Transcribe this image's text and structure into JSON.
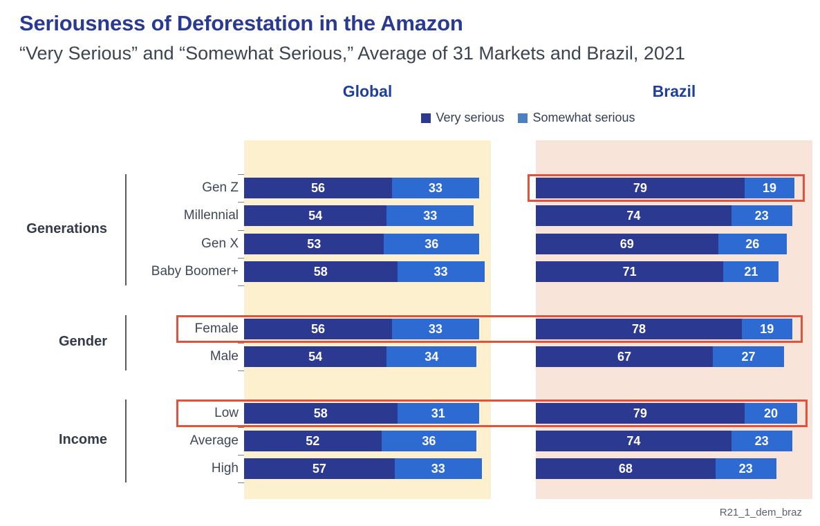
{
  "title": "Seriousness of Deforestation in the Amazon",
  "subtitle": "“Very Serious” and “Somewhat Serious,” Average of 31 Markets and Brazil, 2021",
  "panel_headers": {
    "global": "Global",
    "brazil": "Brazil"
  },
  "legend": [
    {
      "label": "Very serious",
      "color": "#2B3990"
    },
    {
      "label": "Somewhat serious",
      "color": "#4C80C2"
    }
  ],
  "footnote": "R21_1_dem_braz",
  "colors": {
    "very_serious_bar": "#2B3990",
    "somewhat_serious_bar": "#2D6BD3",
    "global_panel_bg": "#FCF0CE",
    "brazil_panel_bg": "#F9E4D9",
    "highlight_border": "#E0523C"
  },
  "chart_data": {
    "type": "bar",
    "orientation": "horizontal",
    "stacked": true,
    "value_axis_range": [
      0,
      100
    ],
    "grid": false,
    "legend_position": "top-center",
    "panels": [
      "Global",
      "Brazil"
    ],
    "series_names": [
      "Very serious",
      "Somewhat serious"
    ],
    "groups": [
      {
        "label": "Generations",
        "rows": [
          {
            "label": "Gen Z",
            "global": [
              56,
              33
            ],
            "brazil": [
              79,
              19
            ],
            "highlight": "brazil"
          },
          {
            "label": "Millennial",
            "global": [
              54,
              33
            ],
            "brazil": [
              74,
              23
            ],
            "highlight": null
          },
          {
            "label": "Gen X",
            "global": [
              53,
              36
            ],
            "brazil": [
              69,
              26
            ],
            "highlight": null
          },
          {
            "label": "Baby Boomer+",
            "global": [
              58,
              33
            ],
            "brazil": [
              71,
              21
            ],
            "highlight": null
          }
        ]
      },
      {
        "label": "Gender",
        "rows": [
          {
            "label": "Female",
            "global": [
              56,
              33
            ],
            "brazil": [
              78,
              19
            ],
            "highlight": "row"
          },
          {
            "label": "Male",
            "global": [
              54,
              34
            ],
            "brazil": [
              67,
              27
            ],
            "highlight": null
          }
        ]
      },
      {
        "label": "Income",
        "rows": [
          {
            "label": "Low",
            "global": [
              58,
              31
            ],
            "brazil": [
              79,
              20
            ],
            "highlight": "row"
          },
          {
            "label": "Average",
            "global": [
              52,
              36
            ],
            "brazil": [
              74,
              23
            ],
            "highlight": null
          },
          {
            "label": "High",
            "global": [
              57,
              33
            ],
            "brazil": [
              68,
              23
            ],
            "highlight": null
          }
        ]
      }
    ]
  }
}
